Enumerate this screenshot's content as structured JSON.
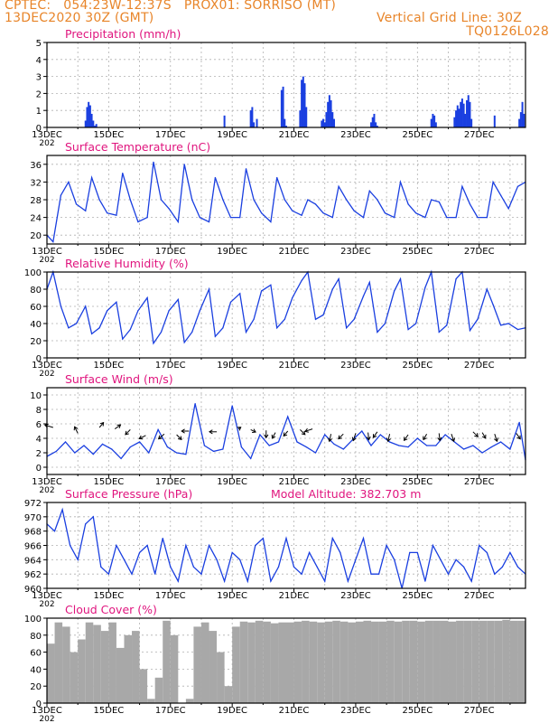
{
  "header": {
    "line1_left": "CPTEC:   054:23W-12:37S   PROX01: SORRISO (MT)",
    "line2_left": "13DEC2020 30Z (GMT)",
    "line2_right": "Vertical Grid Line: 30Z",
    "line3_right": "TQ0126L028"
  },
  "x_ticks": [
    "13DEC",
    "15DEC",
    "17DEC",
    "19DEC",
    "21DEC",
    "23DEC",
    "25DEC",
    "27DEC"
  ],
  "x_sub_label": "202",
  "colors": {
    "title": "#e0157e",
    "header": "#e8852a",
    "line": "#1a3fe0",
    "grid": "#b0b0b0",
    "cloud": "#a8a8a8"
  },
  "panels": {
    "precip": {
      "title": "Precipitation (mm/h)"
    },
    "temp": {
      "title": "Surface Temperature (nC)"
    },
    "rh": {
      "title": "Relative Humidity (%)"
    },
    "wind": {
      "title": "Surface Wind (m/s)"
    },
    "pres": {
      "title": "Surface Pressure (hPa)",
      "extra": "Model Altitude: 382.703 m"
    },
    "cloud": {
      "title": "Cloud Cover (%)"
    }
  },
  "chart_data": [
    {
      "type": "bar",
      "title": "Precipitation (mm/h)",
      "x_units": "days since 13DEC 00Z",
      "ylim": [
        0,
        5
      ],
      "yticks": [
        0,
        1,
        2,
        3,
        4,
        5
      ],
      "x": [
        1.25,
        1.3,
        1.35,
        1.4,
        1.45,
        1.5,
        1.55,
        1.6,
        5.75,
        6.6,
        6.65,
        6.7,
        6.8,
        7.6,
        7.65,
        7.7,
        7.75,
        8.2,
        8.25,
        8.3,
        8.35,
        8.4,
        8.9,
        8.95,
        9.0,
        9.05,
        9.1,
        9.15,
        9.2,
        9.25,
        9.3,
        10.5,
        10.55,
        10.6,
        10.65,
        10.7,
        12.45,
        12.5,
        12.55,
        12.6,
        13.2,
        13.25,
        13.3,
        13.35,
        13.4,
        13.45,
        13.5,
        13.55,
        13.6,
        13.65,
        13.7,
        13.75,
        14.5,
        15.3,
        15.35,
        15.4,
        15.45
      ],
      "values": [
        0.4,
        1.2,
        1.5,
        1.3,
        0.8,
        0.4,
        0.1,
        0.2,
        0.7,
        1.0,
        1.2,
        0.3,
        0.5,
        2.2,
        2.4,
        0.5,
        0.1,
        1.0,
        2.8,
        3.0,
        2.6,
        1.2,
        0.4,
        0.5,
        0.3,
        0.9,
        1.5,
        1.9,
        1.6,
        0.9,
        0.5,
        0.3,
        0.6,
        0.8,
        0.3,
        0.1,
        0.5,
        0.8,
        0.7,
        0.3,
        0.6,
        1.0,
        1.3,
        1.1,
        1.5,
        1.7,
        1.4,
        0.8,
        1.6,
        1.9,
        1.5,
        0.5,
        0.7,
        0.5,
        0.9,
        1.5,
        0.8
      ]
    },
    {
      "type": "line",
      "title": "Surface Temperature (nC)",
      "x_units": "days since 13DEC 00Z",
      "ylim": [
        18,
        38
      ],
      "yticks": [
        20,
        24,
        28,
        32,
        36
      ],
      "x": [
        0,
        0.2,
        0.45,
        0.7,
        0.95,
        1.25,
        1.45,
        1.7,
        1.95,
        2.25,
        2.45,
        2.7,
        2.95,
        3.25,
        3.45,
        3.7,
        3.95,
        4.25,
        4.45,
        4.7,
        4.95,
        5.25,
        5.45,
        5.7,
        5.95,
        6.25,
        6.45,
        6.7,
        6.95,
        7.25,
        7.45,
        7.7,
        7.95,
        8.25,
        8.45,
        8.7,
        8.95,
        9.25,
        9.45,
        9.7,
        9.95,
        10.25,
        10.45,
        10.7,
        10.95,
        11.25,
        11.45,
        11.7,
        11.95,
        12.25,
        12.45,
        12.7,
        12.95,
        13.25,
        13.45,
        13.7,
        13.95,
        14.25,
        14.45,
        14.7,
        14.95,
        15.25,
        15.5
      ],
      "values": [
        20,
        18.5,
        29,
        32,
        27,
        25.5,
        33,
        28,
        25,
        24.5,
        34,
        28,
        23,
        24,
        36.5,
        28,
        26,
        23,
        36,
        28,
        24,
        23,
        33,
        28,
        24,
        24,
        35,
        28,
        25,
        23,
        33,
        28,
        25.5,
        24.5,
        28,
        27,
        25,
        24,
        31,
        28,
        25.5,
        24,
        30,
        28,
        25,
        24,
        32,
        27,
        25,
        24,
        28,
        27.5,
        24,
        24,
        31,
        27,
        24,
        24,
        32,
        29,
        26,
        31,
        32
      ]
    },
    {
      "type": "line",
      "title": "Relative Humidity (%)",
      "x_units": "days since 13DEC 00Z",
      "ylim": [
        0,
        100
      ],
      "yticks": [
        0,
        20,
        40,
        60,
        80,
        100
      ],
      "x": [
        0,
        0.2,
        0.45,
        0.7,
        0.95,
        1.25,
        1.45,
        1.7,
        1.95,
        2.25,
        2.45,
        2.7,
        2.95,
        3.25,
        3.45,
        3.7,
        3.95,
        4.25,
        4.45,
        4.7,
        4.95,
        5.25,
        5.45,
        5.7,
        5.95,
        6.25,
        6.45,
        6.7,
        6.95,
        7.25,
        7.45,
        7.7,
        7.95,
        8.25,
        8.45,
        8.7,
        8.95,
        9.25,
        9.45,
        9.7,
        9.95,
        10.25,
        10.45,
        10.7,
        10.95,
        11.25,
        11.45,
        11.7,
        11.95,
        12.25,
        12.45,
        12.7,
        12.95,
        13.25,
        13.45,
        13.7,
        13.95,
        14.25,
        14.45,
        14.7,
        14.95,
        15.25,
        15.5
      ],
      "values": [
        80,
        100,
        60,
        35,
        40,
        60,
        28,
        35,
        55,
        65,
        22,
        33,
        55,
        70,
        17,
        30,
        55,
        68,
        18,
        30,
        55,
        80,
        25,
        35,
        65,
        75,
        30,
        45,
        78,
        85,
        35,
        45,
        70,
        90,
        100,
        45,
        50,
        80,
        92,
        35,
        45,
        72,
        88,
        30,
        40,
        78,
        92,
        33,
        40,
        82,
        100,
        30,
        38,
        92,
        100,
        32,
        45,
        80,
        62,
        38,
        40,
        33,
        35
      ]
    },
    {
      "type": "line",
      "title": "Surface Wind (m/s)",
      "x_units": "days since 13DEC 00Z",
      "ylim": [
        -1,
        11
      ],
      "yticks": [
        0,
        2,
        4,
        6,
        8,
        10
      ],
      "x": [
        0,
        0.3,
        0.6,
        0.9,
        1.2,
        1.5,
        1.8,
        2.1,
        2.4,
        2.7,
        3.0,
        3.3,
        3.6,
        3.9,
        4.2,
        4.5,
        4.8,
        5.1,
        5.4,
        5.7,
        6.0,
        6.3,
        6.6,
        6.9,
        7.2,
        7.5,
        7.8,
        8.1,
        8.4,
        8.7,
        9.0,
        9.3,
        9.6,
        9.9,
        10.2,
        10.5,
        10.8,
        11.1,
        11.4,
        11.7,
        12.0,
        12.3,
        12.6,
        12.9,
        13.2,
        13.5,
        13.8,
        14.1,
        14.4,
        14.7,
        15.0,
        15.3,
        15.5
      ],
      "values": [
        1.5,
        2.2,
        3.5,
        2.0,
        3.0,
        1.8,
        3.2,
        2.5,
        1.2,
        2.8,
        3.5,
        2.0,
        5.2,
        2.8,
        2.0,
        1.8,
        8.8,
        3.0,
        2.2,
        2.5,
        8.5,
        2.8,
        1.2,
        4.5,
        3.0,
        3.5,
        7.0,
        3.5,
        2.8,
        2.0,
        4.5,
        3.2,
        2.5,
        3.8,
        5.0,
        3.0,
        4.5,
        3.5,
        3.0,
        2.8,
        4.0,
        3.0,
        3.0,
        4.5,
        3.5,
        2.5,
        3.0,
        2.0,
        2.8,
        3.5,
        2.5,
        6.2,
        1.0
      ]
    },
    {
      "type": "line",
      "title": "Surface Pressure (hPa)",
      "x_units": "days since 13DEC 00Z",
      "ylim": [
        960,
        972
      ],
      "yticks": [
        960,
        962,
        964,
        966,
        968,
        970,
        972
      ],
      "x": [
        0,
        0.25,
        0.5,
        0.75,
        1.0,
        1.25,
        1.5,
        1.75,
        2.0,
        2.25,
        2.5,
        2.75,
        3.0,
        3.25,
        3.5,
        3.75,
        4.0,
        4.25,
        4.5,
        4.75,
        5.0,
        5.25,
        5.5,
        5.75,
        6.0,
        6.25,
        6.5,
        6.75,
        7.0,
        7.25,
        7.5,
        7.75,
        8.0,
        8.25,
        8.5,
        8.75,
        9.0,
        9.25,
        9.5,
        9.75,
        10.0,
        10.25,
        10.5,
        10.75,
        11.0,
        11.25,
        11.5,
        11.75,
        12.0,
        12.25,
        12.5,
        12.75,
        13.0,
        13.25,
        13.5,
        13.75,
        14.0,
        14.25,
        14.5,
        14.75,
        15.0,
        15.25,
        15.5
      ],
      "values": [
        969,
        968,
        971,
        966,
        964,
        969,
        970,
        963,
        962,
        966,
        964,
        962,
        965,
        966,
        962,
        967,
        963,
        961,
        966,
        963,
        962,
        966,
        964,
        961,
        965,
        964,
        961,
        966,
        967,
        961,
        963,
        967,
        963,
        962,
        965,
        963,
        961,
        967,
        965,
        961,
        964,
        967,
        962,
        962,
        966,
        964,
        960,
        965,
        965,
        961,
        966,
        964,
        962,
        964,
        963,
        961,
        966,
        965,
        962,
        963,
        965,
        963,
        962
      ]
    },
    {
      "type": "bar",
      "title": "Cloud Cover (%)",
      "x_units": "days since 13DEC 00Z",
      "ylim": [
        0,
        100
      ],
      "yticks": [
        0,
        20,
        40,
        60,
        80,
        100
      ],
      "x": [
        0,
        0.25,
        0.5,
        0.75,
        1.0,
        1.25,
        1.5,
        1.75,
        2.0,
        2.25,
        2.5,
        2.75,
        3.0,
        3.25,
        3.5,
        3.75,
        4.0,
        4.25,
        4.5,
        4.75,
        5.0,
        5.25,
        5.5,
        5.75,
        6.0,
        6.25,
        6.5,
        6.75,
        7.0,
        7.25,
        7.5,
        7.75,
        8.0,
        8.25,
        8.5,
        8.75,
        9.0,
        9.25,
        9.5,
        9.75,
        10.0,
        10.25,
        10.5,
        10.75,
        11.0,
        11.25,
        11.5,
        11.75,
        12.0,
        12.25,
        12.5,
        12.75,
        13.0,
        13.25,
        13.5,
        13.75,
        14.0,
        14.25,
        14.5,
        14.75,
        15.0,
        15.25
      ],
      "values": [
        70,
        95,
        90,
        60,
        75,
        95,
        92,
        85,
        95,
        65,
        80,
        85,
        40,
        5,
        30,
        97,
        80,
        0,
        5,
        90,
        95,
        85,
        60,
        20,
        90,
        96,
        95,
        97,
        96,
        94,
        95,
        95,
        96,
        97,
        96,
        95,
        96,
        97,
        96,
        95,
        96,
        97,
        96,
        96,
        97,
        96,
        97,
        97,
        96,
        97,
        97,
        97,
        96,
        97,
        97,
        97,
        97,
        97,
        97,
        98,
        97,
        97
      ]
    }
  ]
}
